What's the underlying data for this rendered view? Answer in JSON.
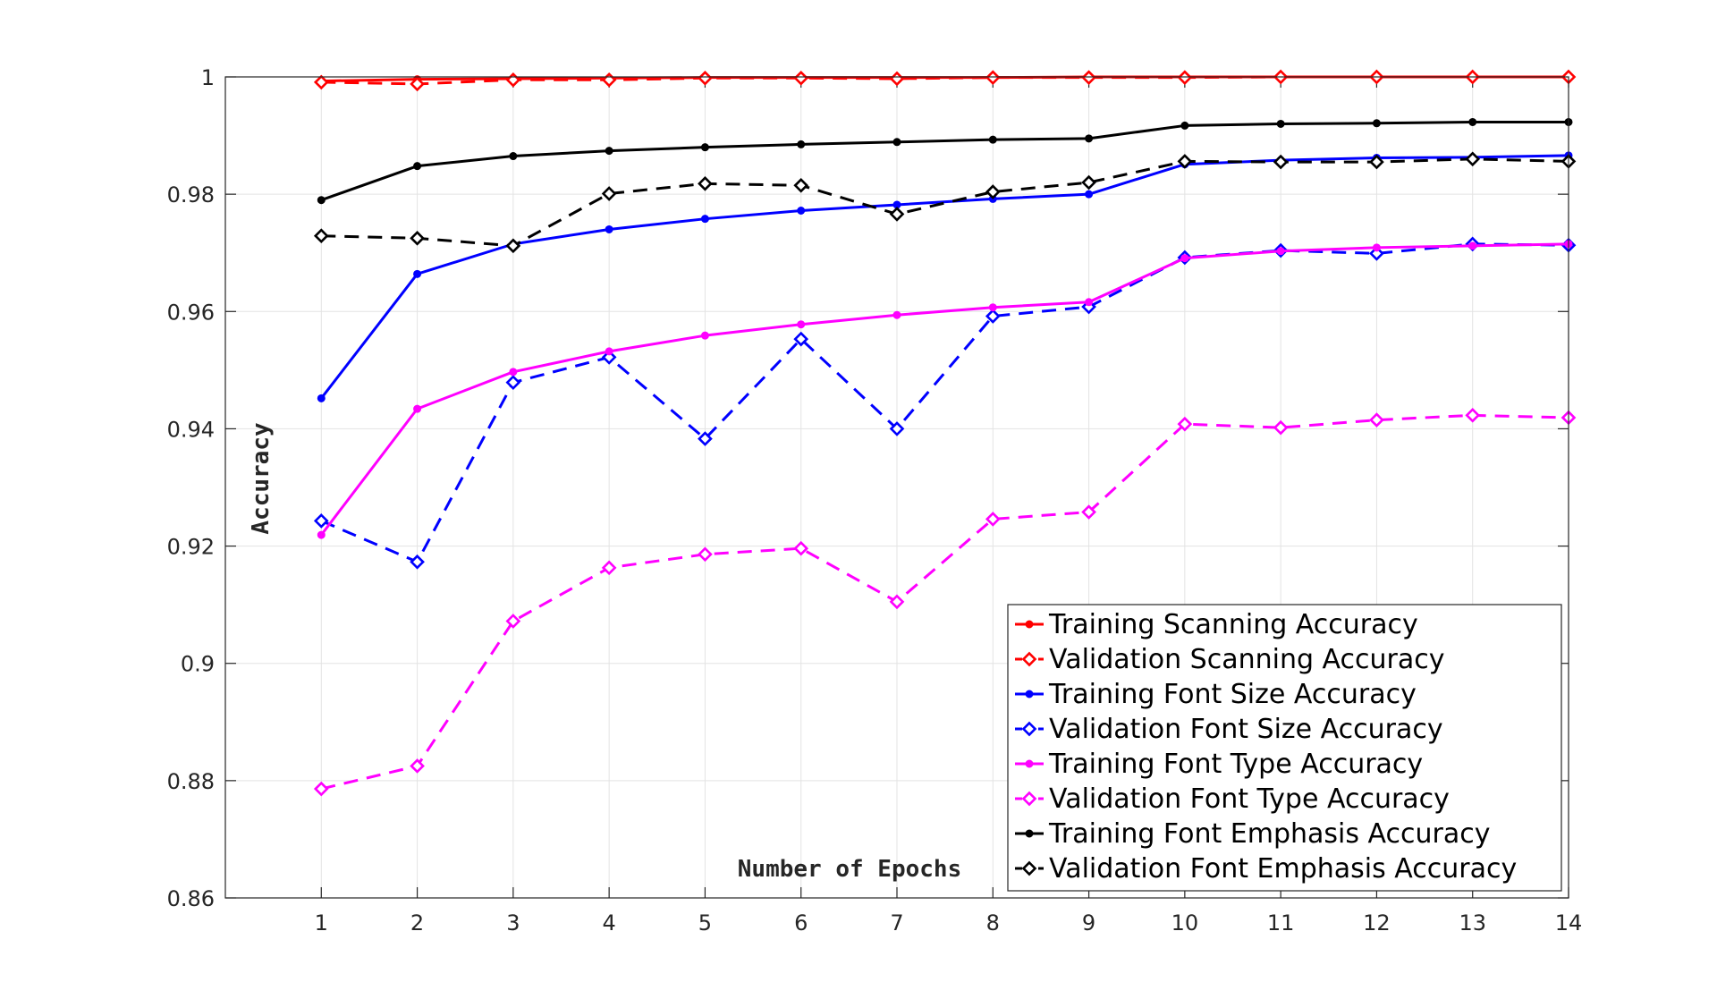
{
  "chart_data": {
    "type": "line",
    "title": "",
    "xlabel": "Number of Epochs",
    "ylabel": "Accuracy",
    "xlim": [
      0,
      14
    ],
    "ylim": [
      0.86,
      1.0
    ],
    "xticks": [
      1,
      2,
      3,
      4,
      5,
      6,
      7,
      8,
      9,
      10,
      11,
      12,
      13,
      14
    ],
    "yticks": [
      0.86,
      0.88,
      0.9,
      0.92,
      0.94,
      0.96,
      0.98,
      1
    ],
    "ytick_labels": [
      "0.86",
      "0.88",
      "0.9",
      "0.92",
      "0.94",
      "0.96",
      "0.98",
      "1"
    ],
    "grid": true,
    "legend_position": "bottom-right",
    "x": [
      1,
      2,
      3,
      4,
      5,
      6,
      7,
      8,
      9,
      10,
      11,
      12,
      13,
      14
    ],
    "series": [
      {
        "name": "Training Scanning Accuracy",
        "color": "#ff0000",
        "style": "solid",
        "marker": "dot",
        "values": [
          0.9993,
          0.9996,
          0.9997,
          0.9998,
          0.9999,
          0.9999,
          0.9999,
          0.9999,
          1.0,
          1.0,
          1.0,
          1.0,
          1.0,
          1.0
        ]
      },
      {
        "name": "Validation Scanning Accuracy",
        "color": "#ff0000",
        "style": "dashed",
        "marker": "diamond",
        "values": [
          0.9991,
          0.9988,
          0.9995,
          0.9995,
          0.9998,
          0.9998,
          0.9997,
          0.9999,
          0.9999,
          0.9999,
          1.0,
          1.0,
          1.0,
          1.0
        ]
      },
      {
        "name": "Training Font Size Accuracy",
        "color": "#0000ff",
        "style": "solid",
        "marker": "dot",
        "values": [
          0.9452,
          0.9664,
          0.9715,
          0.974,
          0.9758,
          0.9772,
          0.9782,
          0.9792,
          0.98,
          0.9851,
          0.9858,
          0.9862,
          0.9863,
          0.9866
        ]
      },
      {
        "name": "Validation Font Size Accuracy",
        "color": "#0000ff",
        "style": "dashed",
        "marker": "diamond",
        "values": [
          0.9243,
          0.9173,
          0.9479,
          0.9522,
          0.9383,
          0.9553,
          0.94,
          0.9592,
          0.9608,
          0.9692,
          0.9704,
          0.9699,
          0.9715,
          0.9713
        ]
      },
      {
        "name": "Training Font Type Accuracy",
        "color": "#ff00ff",
        "style": "solid",
        "marker": "dot",
        "values": [
          0.9219,
          0.9434,
          0.9497,
          0.9532,
          0.9559,
          0.9578,
          0.9594,
          0.9607,
          0.9616,
          0.9691,
          0.9703,
          0.9709,
          0.9712,
          0.9715
        ]
      },
      {
        "name": "Validation Font Type Accuracy",
        "color": "#ff00ff",
        "style": "dashed",
        "marker": "diamond",
        "values": [
          0.8786,
          0.8825,
          0.9072,
          0.9163,
          0.9186,
          0.9196,
          0.9105,
          0.9246,
          0.9258,
          0.9408,
          0.9402,
          0.9415,
          0.9423,
          0.9419
        ]
      },
      {
        "name": "Training Font Emphasis Accuracy",
        "color": "#000000",
        "style": "solid",
        "marker": "dot",
        "values": [
          0.979,
          0.9848,
          0.9865,
          0.9874,
          0.988,
          0.9885,
          0.9889,
          0.9893,
          0.9895,
          0.9917,
          0.992,
          0.9921,
          0.9923,
          0.9923
        ]
      },
      {
        "name": "Validation Font Emphasis Accuracy",
        "color": "#000000",
        "style": "dashed",
        "marker": "diamond",
        "values": [
          0.9729,
          0.9725,
          0.9712,
          0.9801,
          0.9818,
          0.9815,
          0.9766,
          0.9804,
          0.982,
          0.9856,
          0.9855,
          0.9855,
          0.986,
          0.9856
        ]
      }
    ]
  }
}
